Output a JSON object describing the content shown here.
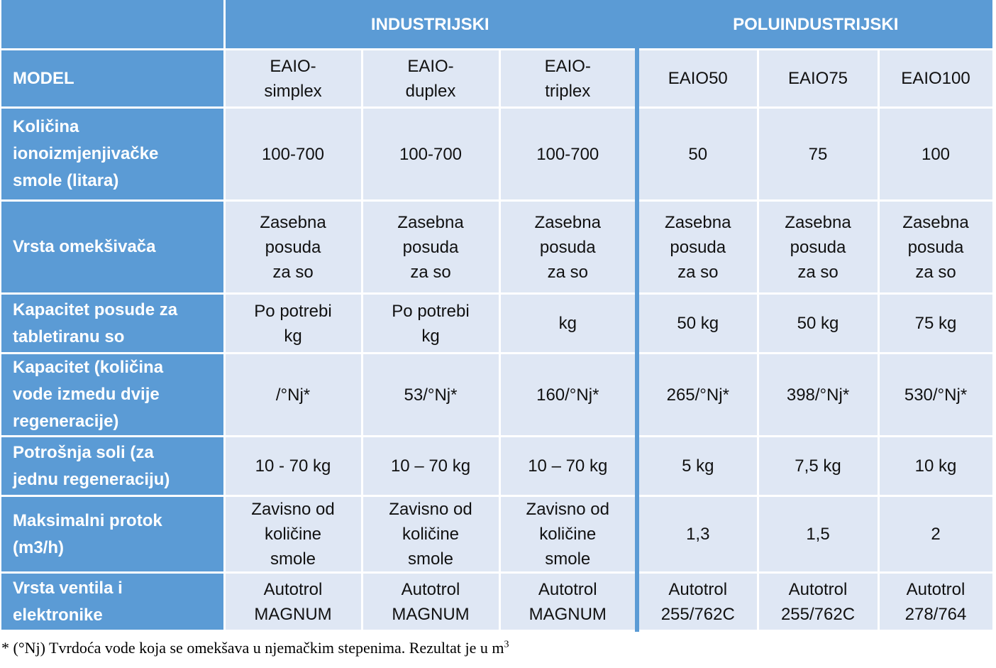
{
  "groups": {
    "left_blank": "",
    "industrial": "INDUSTRIJSKI",
    "semi_industrial": "POLUINDUSTRIJSKI"
  },
  "rows": [
    {
      "label": "MODEL",
      "cells": [
        "EAIO-\nsimplex",
        "EAIO-\nduplex",
        "EAIO-\ntriplex",
        "EAIO50",
        "EAIO75",
        "EAIO100"
      ]
    },
    {
      "label": "Količina\nionoizmjenjivačke\nsmole (litara)",
      "cells": [
        "100-700",
        "100-700",
        "100-700",
        "50",
        "75",
        "100"
      ]
    },
    {
      "label": "Vrsta omekšivača",
      "cells": [
        "Zasebna\nposuda\nza so",
        "Zasebna\nposuda\nza so",
        "Zasebna\nposuda\nza so",
        "Zasebna\nposuda\nza so",
        "Zasebna\nposuda\nza so",
        "Zasebna\nposuda\nza so"
      ]
    },
    {
      "label": "Kapacitet posude za\ntabletiranu so",
      "cells": [
        "Po potrebi\nkg",
        "Po potrebi\nkg",
        "kg",
        "50 kg",
        "50 kg",
        "75 kg"
      ]
    },
    {
      "label": "Kapacitet (količina\nvode izmedu dvije\nregeneracije)",
      "cells": [
        "/°Nj*",
        "53/°Nj*",
        "160/°Nj*",
        "265/°Nj*",
        "398/°Nj*",
        "530/°Nj*"
      ]
    },
    {
      "label": "Potrošnja soli (za\njednu regeneraciju)",
      "cells": [
        "10 - 70 kg",
        "10 – 70 kg",
        "10 – 70  kg",
        "5 kg",
        "7,5 kg",
        "10 kg"
      ]
    },
    {
      "label": "Maksimalni protok\n(m3/h)",
      "cells": [
        "Zavisno od\nkoličine\nsmole",
        "Zavisno od\nkoličine\nsmole",
        "Zavisno od\nkoličine\nsmole",
        "1,3",
        "1,5",
        "2"
      ]
    },
    {
      "label": "Vrsta ventila i\nelektronike",
      "cells": [
        "Autotrol\nMAGNUM",
        "Autotrol\nMAGNUM",
        "Autotrol\nMAGNUM",
        "Autotrol\n255/762C",
        "Autotrol\n255/762C",
        "Autotrol\n278/764"
      ]
    }
  ],
  "footnote": {
    "text": "* (°Nj) Tvrdoća vode koja se omekšava u njemačkim stepenima. Rezultat je u m",
    "superscript": "3"
  }
}
